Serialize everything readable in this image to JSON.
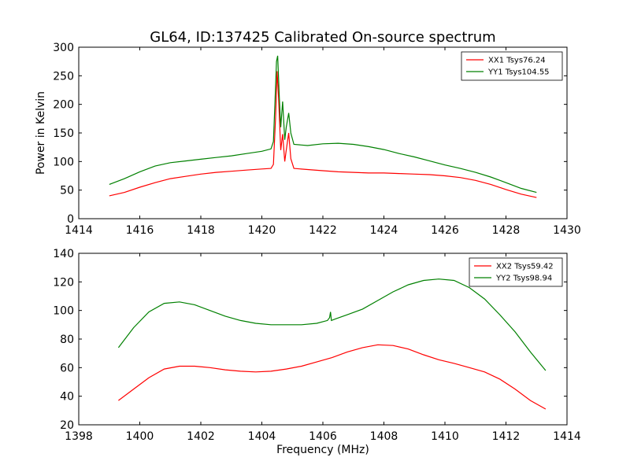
{
  "title": "GL64, ID:137425 Calibrated On-source spectrum",
  "chart_data": [
    {
      "type": "line",
      "xlabel": "",
      "ylabel": "Power in Kelvin",
      "xlim": [
        1414,
        1430
      ],
      "ylim": [
        0,
        300
      ],
      "x_ticks": [
        "1414",
        "1416",
        "1418",
        "1420",
        "1422",
        "1424",
        "1426",
        "1428",
        "1430"
      ],
      "y_ticks": [
        "0",
        "50",
        "100",
        "150",
        "200",
        "250",
        "300"
      ],
      "legend_position": "top-right",
      "grid": false,
      "series": [
        {
          "name": "XX1 Tsys76.24",
          "color": "#ff0000",
          "points": [
            [
              1415.0,
              40
            ],
            [
              1415.5,
              46
            ],
            [
              1416.0,
              55
            ],
            [
              1416.5,
              63
            ],
            [
              1417.0,
              70
            ],
            [
              1417.5,
              74
            ],
            [
              1418.0,
              78
            ],
            [
              1418.5,
              81
            ],
            [
              1419.0,
              83
            ],
            [
              1419.5,
              85
            ],
            [
              1420.0,
              87
            ],
            [
              1420.3,
              88
            ],
            [
              1420.38,
              95
            ],
            [
              1420.45,
              175
            ],
            [
              1420.5,
              258
            ],
            [
              1420.55,
              210
            ],
            [
              1420.62,
              120
            ],
            [
              1420.68,
              148
            ],
            [
              1420.75,
              100
            ],
            [
              1420.8,
              120
            ],
            [
              1420.88,
              150
            ],
            [
              1420.95,
              105
            ],
            [
              1421.05,
              88
            ],
            [
              1421.5,
              86
            ],
            [
              1422.0,
              84
            ],
            [
              1422.5,
              82
            ],
            [
              1423.0,
              81
            ],
            [
              1423.5,
              80
            ],
            [
              1424.0,
              80
            ],
            [
              1424.5,
              79
            ],
            [
              1425.0,
              78
            ],
            [
              1425.5,
              77
            ],
            [
              1426.0,
              75
            ],
            [
              1426.5,
              72
            ],
            [
              1427.0,
              67
            ],
            [
              1427.5,
              60
            ],
            [
              1428.0,
              51
            ],
            [
              1428.5,
              43
            ],
            [
              1429.0,
              37
            ]
          ]
        },
        {
          "name": "YY1 Tsys104.55",
          "color": "#008000",
          "points": [
            [
              1415.0,
              60
            ],
            [
              1415.5,
              70
            ],
            [
              1416.0,
              82
            ],
            [
              1416.5,
              92
            ],
            [
              1417.0,
              98
            ],
            [
              1417.5,
              101
            ],
            [
              1418.0,
              104
            ],
            [
              1418.5,
              107
            ],
            [
              1419.0,
              110
            ],
            [
              1419.5,
              114
            ],
            [
              1420.0,
              118
            ],
            [
              1420.3,
              122
            ],
            [
              1420.38,
              135
            ],
            [
              1420.45,
              230
            ],
            [
              1420.48,
              275
            ],
            [
              1420.52,
              285
            ],
            [
              1420.57,
              215
            ],
            [
              1420.62,
              160
            ],
            [
              1420.68,
              205
            ],
            [
              1420.75,
              138
            ],
            [
              1420.8,
              160
            ],
            [
              1420.88,
              185
            ],
            [
              1420.95,
              150
            ],
            [
              1421.05,
              130
            ],
            [
              1421.5,
              128
            ],
            [
              1422.0,
              131
            ],
            [
              1422.5,
              132
            ],
            [
              1423.0,
              130
            ],
            [
              1423.5,
              126
            ],
            [
              1424.0,
              121
            ],
            [
              1424.5,
              114
            ],
            [
              1425.0,
              108
            ],
            [
              1425.5,
              101
            ],
            [
              1426.0,
              94
            ],
            [
              1426.5,
              88
            ],
            [
              1427.0,
              81
            ],
            [
              1427.5,
              73
            ],
            [
              1428.0,
              63
            ],
            [
              1428.5,
              53
            ],
            [
              1429.0,
              46
            ]
          ]
        }
      ]
    },
    {
      "type": "line",
      "xlabel": "Frequency (MHz)",
      "ylabel": "",
      "xlim": [
        1398,
        1414
      ],
      "ylim": [
        20,
        140
      ],
      "x_ticks": [
        "1398",
        "1400",
        "1402",
        "1404",
        "1406",
        "1408",
        "1410",
        "1412",
        "1414"
      ],
      "y_ticks": [
        "20",
        "40",
        "60",
        "80",
        "100",
        "120",
        "140"
      ],
      "legend_position": "top-right",
      "grid": false,
      "series": [
        {
          "name": "XX2 Tsys59.42",
          "color": "#ff0000",
          "points": [
            [
              1399.3,
              37
            ],
            [
              1399.8,
              45
            ],
            [
              1400.3,
              53
            ],
            [
              1400.8,
              59
            ],
            [
              1401.3,
              61
            ],
            [
              1401.8,
              61
            ],
            [
              1402.3,
              60
            ],
            [
              1402.8,
              58.5
            ],
            [
              1403.3,
              57.5
            ],
            [
              1403.8,
              57
            ],
            [
              1404.3,
              57.5
            ],
            [
              1404.8,
              59
            ],
            [
              1405.3,
              61
            ],
            [
              1405.8,
              64
            ],
            [
              1406.3,
              67
            ],
            [
              1406.8,
              71
            ],
            [
              1407.3,
              74
            ],
            [
              1407.8,
              76
            ],
            [
              1408.3,
              75.5
            ],
            [
              1408.8,
              73
            ],
            [
              1409.3,
              69
            ],
            [
              1409.8,
              65.5
            ],
            [
              1410.3,
              63
            ],
            [
              1410.8,
              60
            ],
            [
              1411.3,
              57
            ],
            [
              1411.8,
              52
            ],
            [
              1412.3,
              45
            ],
            [
              1412.8,
              37
            ],
            [
              1413.3,
              31
            ]
          ]
        },
        {
          "name": "YY2 Tsys98.94",
          "color": "#008000",
          "points": [
            [
              1399.3,
              74
            ],
            [
              1399.8,
              88
            ],
            [
              1400.3,
              99
            ],
            [
              1400.8,
              105
            ],
            [
              1401.3,
              106
            ],
            [
              1401.8,
              104
            ],
            [
              1402.3,
              100
            ],
            [
              1402.8,
              96
            ],
            [
              1403.3,
              93
            ],
            [
              1403.8,
              91
            ],
            [
              1404.3,
              90
            ],
            [
              1404.8,
              90
            ],
            [
              1405.3,
              90
            ],
            [
              1405.8,
              91
            ],
            [
              1406.15,
              93
            ],
            [
              1406.22,
              95
            ],
            [
              1406.25,
              99
            ],
            [
              1406.28,
              93
            ],
            [
              1406.4,
              94
            ],
            [
              1406.8,
              97
            ],
            [
              1407.3,
              101
            ],
            [
              1407.8,
              107
            ],
            [
              1408.3,
              113
            ],
            [
              1408.8,
              118
            ],
            [
              1409.3,
              121
            ],
            [
              1409.8,
              122
            ],
            [
              1410.3,
              121
            ],
            [
              1410.8,
              116
            ],
            [
              1411.3,
              108
            ],
            [
              1411.8,
              97
            ],
            [
              1412.3,
              85
            ],
            [
              1412.8,
              71
            ],
            [
              1413.3,
              58
            ]
          ]
        }
      ]
    }
  ]
}
